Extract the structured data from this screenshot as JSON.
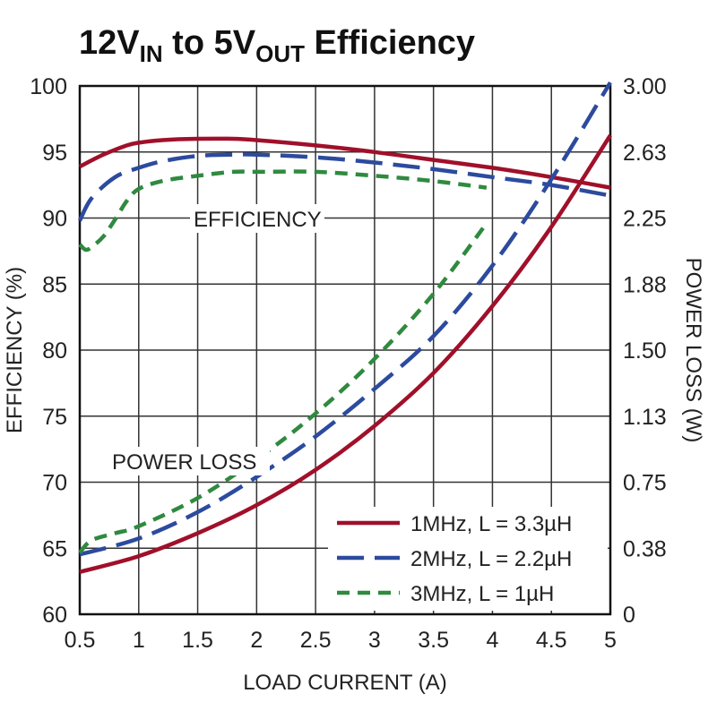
{
  "chart_data": {
    "type": "line",
    "title": {
      "part1": "12V",
      "sub1": "IN",
      "part2": " to 5V",
      "sub2": "OUT",
      "part3": " Efficiency"
    },
    "xlabel": "LOAD CURRENT (A)",
    "ylabel_left": "EFFICIENCY (%)",
    "ylabel_right": "POWER LOSS (W)",
    "xlim": [
      0.5,
      5
    ],
    "ylim_left": [
      60,
      100
    ],
    "x_ticks": [
      "0.5",
      "1",
      "1.5",
      "2",
      "2.5",
      "3",
      "3.5",
      "4",
      "4.5",
      "5"
    ],
    "y_ticks_left": [
      "60",
      "65",
      "70",
      "75",
      "80",
      "85",
      "90",
      "95",
      "100"
    ],
    "y_ticks_right": [
      "0",
      "0.38",
      "0.75",
      "1.13",
      "1.50",
      "1.88",
      "2.25",
      "2.63",
      "3.00"
    ],
    "grid": true,
    "legend_position": "bottom-right",
    "annotations": {
      "efficiency": "EFFICIENCY",
      "power_loss": "POWER LOSS"
    },
    "series": [
      {
        "name": "1MHz, L = 3.3µH",
        "color": "#a0102a",
        "dash": "solid",
        "efficiency": {
          "x": [
            0.5,
            0.7,
            0.9,
            1.0,
            1.2,
            1.5,
            1.8,
            2.0,
            2.5,
            3.0,
            3.5,
            4.0,
            4.5,
            5.0
          ],
          "y": [
            93.9,
            94.8,
            95.5,
            95.7,
            95.9,
            96.0,
            96.0,
            95.9,
            95.5,
            95.0,
            94.4,
            93.8,
            93.1,
            92.3
          ]
        },
        "power_loss": {
          "x": [
            0.5,
            1.0,
            1.5,
            2.0,
            2.5,
            3.0,
            3.5,
            4.0,
            4.5,
            5.0
          ],
          "y": [
            0.24,
            0.33,
            0.46,
            0.62,
            0.82,
            1.07,
            1.37,
            1.75,
            2.2,
            2.72
          ]
        }
      },
      {
        "name": "2MHz, L = 2.2µH",
        "color": "#2c4b9e",
        "dash": "long-dash",
        "efficiency": {
          "x": [
            0.5,
            0.6,
            0.8,
            1.0,
            1.2,
            1.5,
            1.8,
            2.0,
            2.5,
            3.0,
            3.5,
            4.0,
            4.5,
            5.0
          ],
          "y": [
            89.8,
            91.5,
            93.1,
            93.8,
            94.3,
            94.7,
            94.8,
            94.8,
            94.6,
            94.2,
            93.7,
            93.1,
            92.5,
            91.7
          ]
        },
        "power_loss": {
          "x": [
            0.5,
            1.0,
            1.5,
            2.0,
            2.5,
            3.0,
            3.5,
            4.0,
            4.5,
            5.0
          ],
          "y": [
            0.34,
            0.43,
            0.58,
            0.78,
            1.01,
            1.28,
            1.58,
            1.98,
            2.47,
            3.02
          ]
        }
      },
      {
        "name": "3MHz, L = 1µH",
        "color": "#2f8a3f",
        "dash": "short-dash",
        "efficiency": {
          "x": [
            0.5,
            0.55,
            0.6,
            0.7,
            0.8,
            0.9,
            1.0,
            1.2,
            1.5,
            1.8,
            2.0,
            2.5,
            3.0,
            3.5,
            3.95
          ],
          "y": [
            88.0,
            87.6,
            87.8,
            88.6,
            89.9,
            91.3,
            92.2,
            92.8,
            93.2,
            93.5,
            93.5,
            93.5,
            93.2,
            92.8,
            92.3
          ]
        },
        "power_loss": {
          "x": [
            0.5,
            0.6,
            0.8,
            1.0,
            1.5,
            2.0,
            2.5,
            3.0,
            3.5,
            3.95
          ],
          "y": [
            0.35,
            0.42,
            0.46,
            0.5,
            0.66,
            0.88,
            1.14,
            1.45,
            1.82,
            2.22
          ]
        }
      }
    ]
  }
}
